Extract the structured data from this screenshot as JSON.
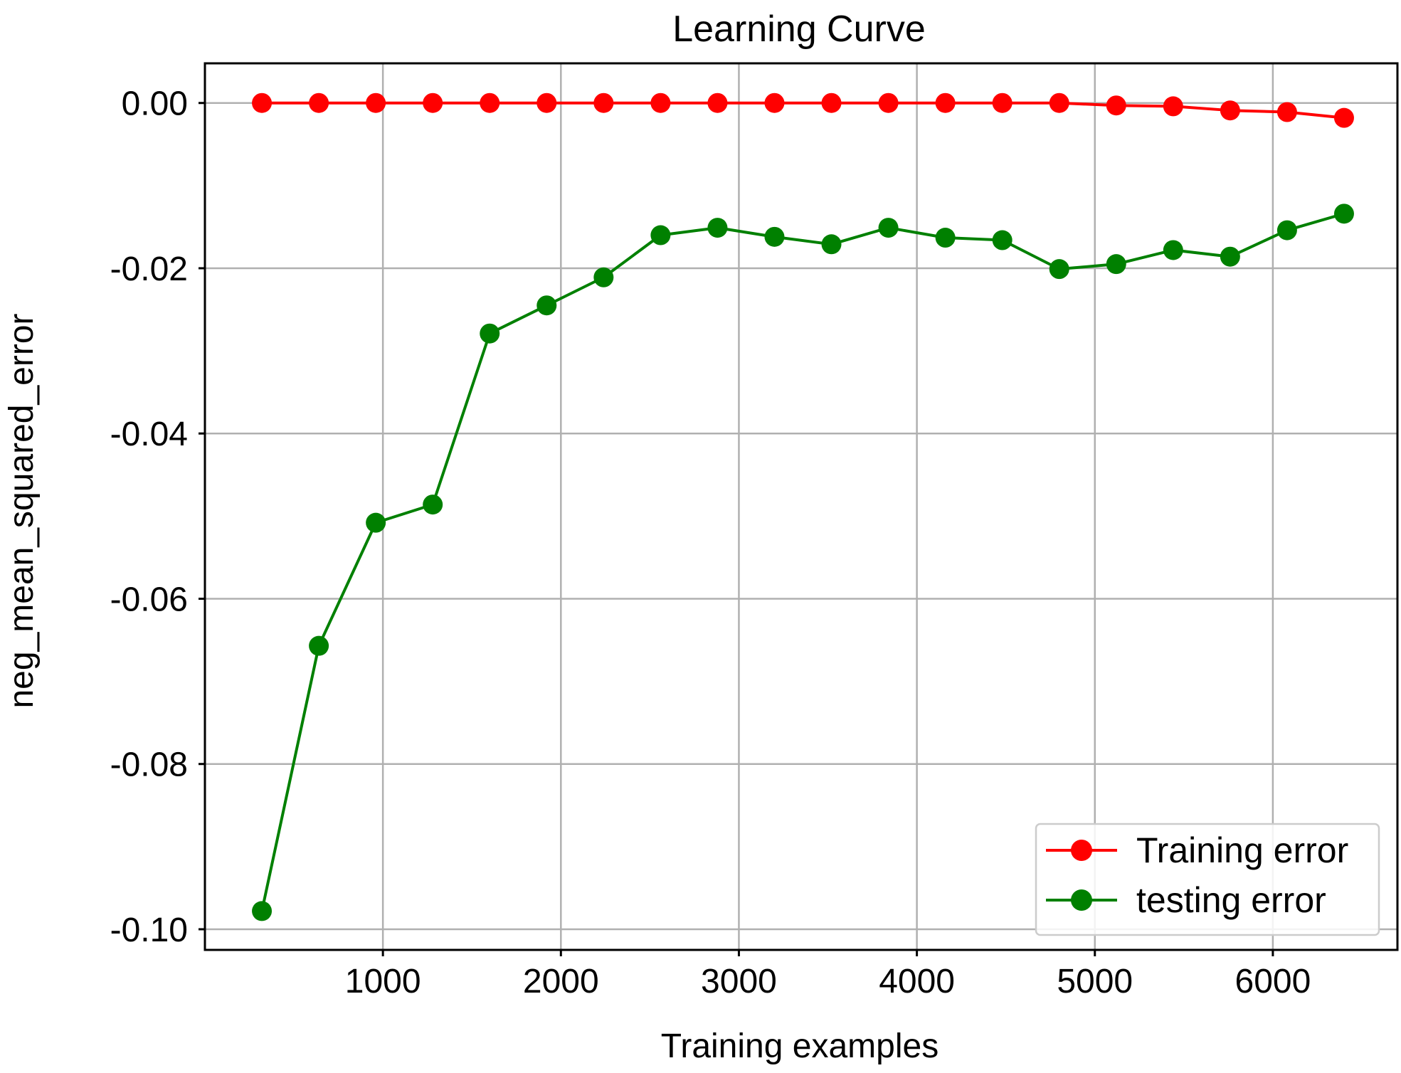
{
  "chart_data": {
    "type": "line",
    "title": "Learning Curve",
    "xlabel": "Training examples",
    "ylabel": "neg_mean_squared_error",
    "xlim": [
      0,
      6700
    ],
    "ylim": [
      -0.1025,
      0.0048
    ],
    "xticks": [
      1000,
      2000,
      3000,
      4000,
      5000,
      6000
    ],
    "xtick_labels": [
      "1000",
      "2000",
      "3000",
      "4000",
      "5000",
      "6000"
    ],
    "yticks": [
      0.0,
      -0.02,
      -0.04,
      -0.06,
      -0.08,
      -0.1
    ],
    "ytick_labels": [
      "0.00",
      "-0.02",
      "-0.04",
      "-0.06",
      "-0.08",
      "-0.10"
    ],
    "grid": true,
    "legend_position": "bottom-right",
    "x": [
      320,
      640,
      960,
      1280,
      1600,
      1920,
      2240,
      2560,
      2880,
      3200,
      3520,
      3840,
      4160,
      4480,
      4800,
      5120,
      5440,
      5760,
      6080,
      6400
    ],
    "series": [
      {
        "name": "Training error",
        "color": "#ff0000",
        "values": [
          0.0,
          0.0,
          0.0,
          0.0,
          0.0,
          0.0,
          0.0,
          0.0,
          0.0,
          0.0,
          0.0,
          0.0,
          0.0,
          0.0,
          0.0,
          -0.0003,
          -0.0004,
          -0.0009,
          -0.0011,
          -0.0018
        ]
      },
      {
        "name": "testing error",
        "color": "#008000",
        "values": [
          -0.0978,
          -0.0657,
          -0.0508,
          -0.0486,
          -0.0279,
          -0.0245,
          -0.0211,
          -0.016,
          -0.0151,
          -0.0162,
          -0.0171,
          -0.0151,
          -0.0163,
          -0.0166,
          -0.0201,
          -0.0195,
          -0.0178,
          -0.0186,
          -0.0154,
          -0.0134
        ]
      }
    ]
  }
}
